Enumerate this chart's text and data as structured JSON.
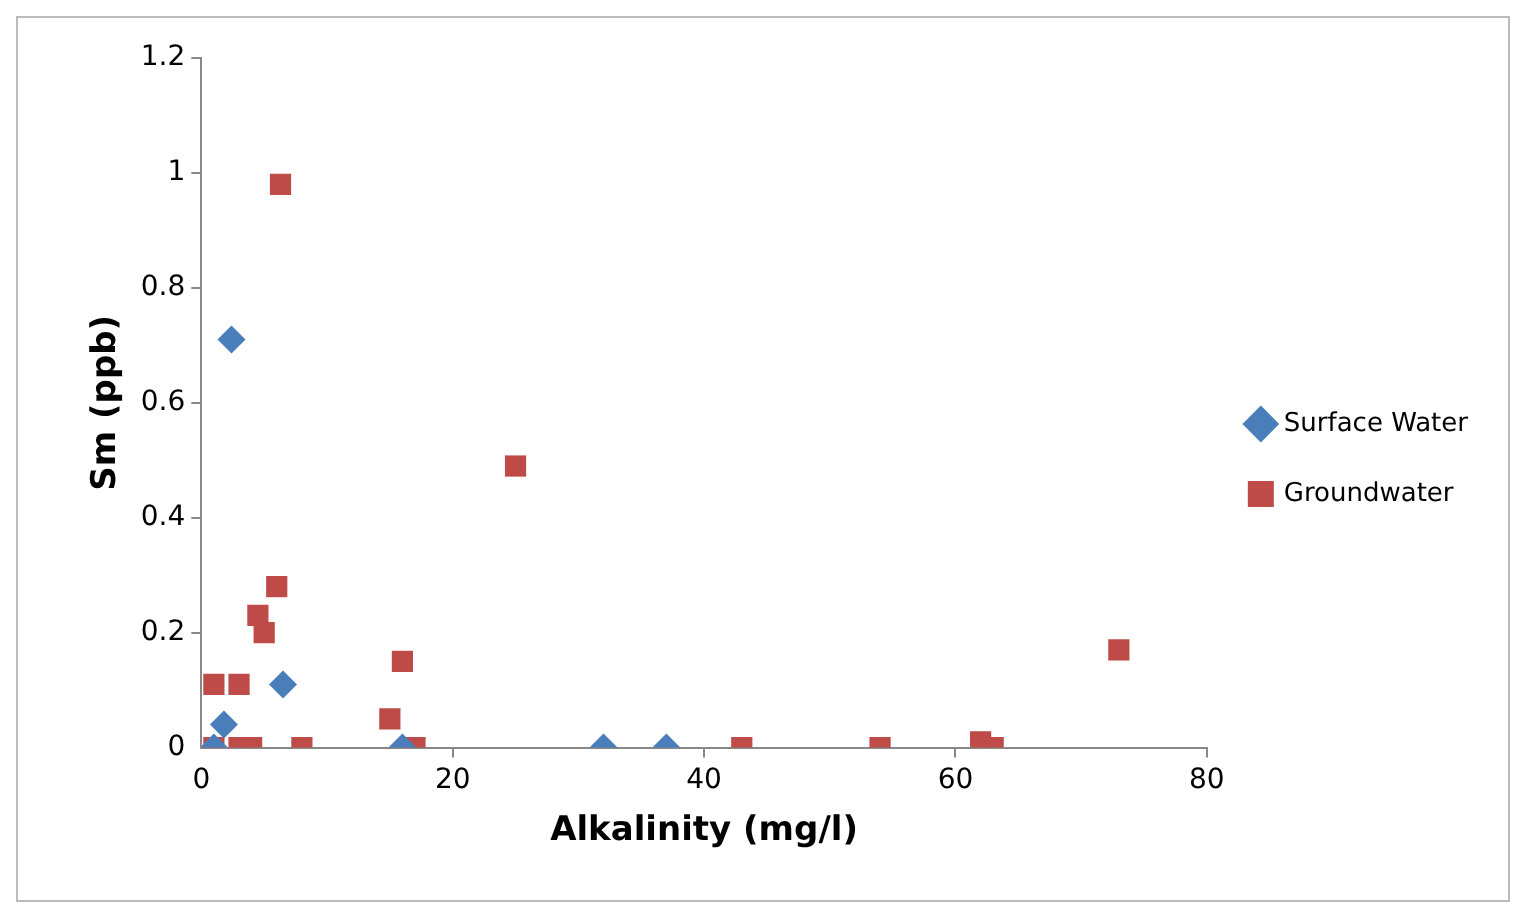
{
  "chart_data": {
    "type": "scatter",
    "xlabel": "Alkalinity (mg/l)",
    "ylabel": "Sm (ppb)",
    "xlim": [
      0,
      80
    ],
    "xticks": [
      0,
      20,
      40,
      60,
      80
    ],
    "ylim": [
      0,
      1.2
    ],
    "yticks": [
      0,
      0.2,
      0.4,
      0.6,
      0.8,
      1,
      1.2
    ],
    "grid": false,
    "legend": "right",
    "series": [
      {
        "name": "Surface Water",
        "color": "#4a7ebb",
        "marker": "diamond",
        "x": [
          2.4,
          6.5,
          1.8,
          1,
          16,
          32,
          37
        ],
        "values": [
          0.71,
          0.11,
          0.04,
          0,
          0,
          0,
          0
        ]
      },
      {
        "name": "Groundwater",
        "color": "#be4b48",
        "marker": "square",
        "x": [
          6.3,
          25,
          6,
          4.5,
          5,
          1,
          3,
          16,
          15,
          17,
          1,
          3,
          4,
          8,
          43,
          54,
          62,
          63,
          73
        ],
        "values": [
          0.98,
          0.49,
          0.28,
          0.23,
          0.2,
          0.11,
          0.11,
          0.15,
          0.05,
          0,
          0,
          0,
          0,
          0,
          0,
          0,
          0.01,
          0,
          0.17
        ]
      }
    ]
  }
}
